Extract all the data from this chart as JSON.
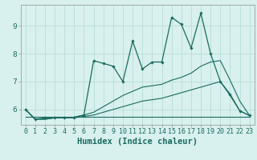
{
  "xlabel": "Humidex (Indice chaleur)",
  "bg_color": "#d8f0ee",
  "grid_color": "#b8ddd8",
  "line_color": "#1a6b60",
  "x": [
    0,
    1,
    2,
    3,
    4,
    5,
    6,
    7,
    8,
    9,
    10,
    11,
    12,
    13,
    14,
    15,
    16,
    17,
    18,
    19,
    20,
    21,
    22,
    23
  ],
  "line_flat": [
    5.75,
    5.75,
    5.75,
    5.75,
    5.75,
    5.75,
    5.75,
    5.75,
    5.75,
    5.75,
    5.75,
    5.75,
    5.75,
    5.75,
    5.75,
    5.75,
    5.75,
    5.75,
    5.75,
    5.75,
    5.75,
    5.75,
    5.75,
    5.75
  ],
  "line_lower": [
    6.0,
    5.65,
    5.65,
    5.7,
    5.7,
    5.7,
    5.75,
    5.8,
    5.9,
    6.0,
    6.1,
    6.2,
    6.3,
    6.35,
    6.4,
    6.5,
    6.6,
    6.7,
    6.8,
    6.9,
    7.0,
    6.5,
    5.95,
    5.78
  ],
  "line_upper": [
    6.0,
    5.65,
    5.65,
    5.7,
    5.7,
    5.72,
    5.8,
    5.9,
    6.1,
    6.3,
    6.5,
    6.65,
    6.8,
    6.85,
    6.9,
    7.05,
    7.15,
    7.3,
    7.55,
    7.7,
    7.75,
    7.05,
    6.3,
    5.78
  ],
  "line_jagged": [
    6.0,
    5.65,
    5.7,
    5.7,
    5.7,
    5.72,
    5.8,
    7.75,
    7.65,
    7.55,
    7.0,
    8.45,
    7.45,
    7.7,
    7.7,
    9.3,
    9.05,
    8.2,
    9.45,
    8.0,
    7.0,
    6.55,
    5.95,
    5.78
  ],
  "ylim": [
    5.45,
    9.75
  ],
  "yticks": [
    6,
    7,
    8,
    9
  ],
  "xlim": [
    -0.5,
    23.5
  ],
  "xticks": [
    0,
    1,
    2,
    3,
    4,
    5,
    6,
    7,
    8,
    9,
    10,
    11,
    12,
    13,
    14,
    15,
    16,
    17,
    18,
    19,
    20,
    21,
    22,
    23
  ],
  "tick_fontsize": 6,
  "label_fontsize": 7.5
}
